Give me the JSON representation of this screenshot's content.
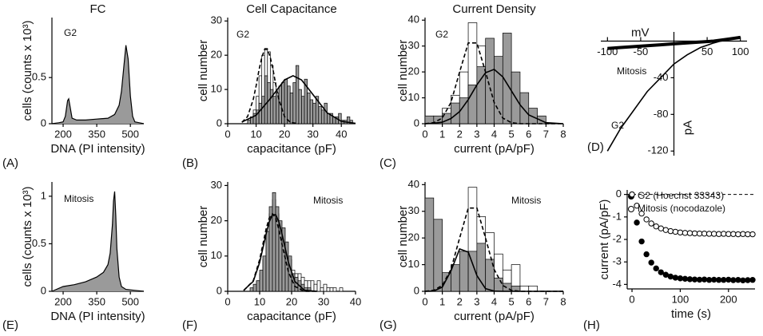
{
  "chart_data": [
    {
      "type": "area",
      "panel": "(A)",
      "title": "FC",
      "annotation": "G2",
      "xlabel": "DNA (PI intensity)",
      "ylabel": "cells (counts x 10³)",
      "x": [
        150,
        180,
        200,
        210,
        220,
        225,
        230,
        240,
        260,
        300,
        350,
        400,
        430,
        450,
        460,
        470,
        480,
        490,
        500,
        510,
        520,
        540,
        560
      ],
      "values": [
        0,
        0.01,
        0.02,
        0.08,
        0.25,
        0.27,
        0.2,
        0.06,
        0.04,
        0.04,
        0.05,
        0.06,
        0.1,
        0.2,
        0.35,
        0.6,
        0.85,
        0.7,
        0.3,
        0.08,
        0.02,
        0.01,
        0
      ],
      "color": "#9a9a9a",
      "xlim": [
        150,
        560
      ],
      "ylim": [
        0,
        1.15
      ],
      "xticks": [
        200,
        350,
        500
      ],
      "yticks": [
        0,
        0.5
      ]
    },
    {
      "type": "histogram",
      "panel": "(B)",
      "title": "Cell Capacitance",
      "annotation": "G2",
      "xlabel": "capacitance (pF)",
      "ylabel": "cell number",
      "bins": [
        6,
        7,
        8,
        9,
        10,
        11,
        12,
        13,
        14,
        15,
        16,
        17,
        18,
        19,
        20,
        21,
        22,
        23,
        24,
        25,
        26,
        27,
        28,
        29,
        30,
        31,
        32,
        33,
        34,
        35,
        36,
        37,
        38,
        39,
        40,
        41,
        42,
        43,
        44
      ],
      "series": [
        {
          "color": "#ffffff",
          "values": [
            0,
            1,
            2,
            4,
            8,
            14,
            20,
            22,
            21,
            17,
            12,
            8,
            6,
            4,
            3,
            2,
            2,
            1,
            1,
            1,
            1,
            0,
            1,
            0,
            0,
            0,
            0,
            0,
            0,
            0,
            0,
            0,
            0,
            0,
            0,
            0,
            0,
            0
          ]
        },
        {
          "color": "#9a9a9a",
          "values": [
            0,
            1,
            2,
            3,
            4,
            6,
            8,
            14,
            12,
            10,
            8,
            9,
            11,
            12,
            13,
            11,
            9,
            12,
            17,
            10,
            8,
            13,
            9,
            7,
            6,
            8,
            5,
            4,
            6,
            3,
            3,
            2,
            2,
            3,
            1,
            1,
            2,
            1
          ]
        }
      ],
      "fits": [
        {
          "dashed": true,
          "x": [
            5,
            7,
            9,
            10,
            11,
            12,
            13,
            14,
            15,
            16,
            17,
            18,
            20,
            22,
            25
          ],
          "values": [
            0.4,
            2.1,
            7.1,
            11.1,
            15.6,
            19.4,
            21.7,
            21.7,
            19.4,
            15.6,
            11.1,
            7.1,
            2.1,
            0.4,
            0
          ]
        },
        {
          "dashed": false,
          "x": [
            5,
            10,
            15,
            20,
            23,
            26,
            30,
            35,
            40,
            45
          ],
          "values": [
            0.5,
            2.5,
            7.3,
            12.8,
            14,
            12.8,
            8.5,
            3.2,
            0.7,
            0.1
          ]
        }
      ],
      "xlim": [
        0,
        45
      ],
      "ylim": [
        0,
        31
      ],
      "xticks": [
        0,
        10,
        20,
        30,
        40
      ],
      "yticks": [
        0,
        10,
        20,
        30
      ]
    },
    {
      "type": "histogram",
      "panel": "(C)",
      "title": "Current Density",
      "annotation": "G2",
      "xlabel": "current (pA/pF)",
      "ylabel": "cell number",
      "bins": [
        0,
        0.5,
        1,
        1.5,
        2,
        2.5,
        3,
        3.5,
        4,
        4.5,
        5,
        5.5,
        6,
        6.5,
        7
      ],
      "series": [
        {
          "color": "#ffffff",
          "values": [
            1,
            2,
            6,
            11,
            20,
            39,
            30,
            14,
            8,
            4,
            2,
            1,
            0,
            0
          ]
        },
        {
          "color": "#9a9a9a",
          "values": [
            3,
            3,
            4,
            8,
            10,
            15,
            22,
            33,
            26,
            35,
            20,
            12,
            6,
            3
          ]
        }
      ],
      "fits": [
        {
          "dashed": true,
          "x": [
            0,
            0.5,
            1,
            1.5,
            2,
            2.5,
            3,
            3.5,
            4,
            4.5,
            5,
            5.5,
            6,
            7,
            8
          ],
          "values": [
            0,
            0.4,
            2.2,
            8.2,
            20,
            31.2,
            31.2,
            20,
            8.2,
            2.2,
            0.4,
            0,
            0,
            0,
            0
          ]
        },
        {
          "dashed": false,
          "x": [
            0,
            0.5,
            1,
            1.5,
            2,
            2.5,
            3,
            3.5,
            4,
            4.5,
            5,
            5.5,
            6,
            7,
            8
          ],
          "values": [
            0,
            0.2,
            0.6,
            2,
            4.7,
            9.3,
            15,
            19.7,
            21,
            18.1,
            12.7,
            7.3,
            3.4,
            0.4,
            0
          ]
        }
      ],
      "xlim": [
        0,
        8
      ],
      "ylim": [
        0,
        41
      ],
      "xticks": [
        0,
        1,
        2,
        3,
        4,
        5,
        6,
        7,
        8
      ],
      "yticks": [
        0,
        10,
        20,
        30,
        40
      ]
    },
    {
      "type": "line",
      "panel": "(D)",
      "xlabel": "mV",
      "ylabel": "pA",
      "x": [
        -100,
        -80,
        -60,
        -40,
        -20,
        0,
        20,
        40,
        60,
        80,
        100
      ],
      "series": [
        {
          "name": "Mitosis",
          "color": "#000000",
          "values": [
            -8,
            -7,
            -6,
            -5,
            -4,
            -3,
            -2,
            -1,
            0,
            2,
            4
          ]
        },
        {
          "name": "G2",
          "color": "#000000",
          "values": [
            -120,
            -95,
            -75,
            -55,
            -40,
            -25,
            -15,
            -7,
            -2,
            2,
            5
          ]
        }
      ],
      "xlim": [
        -110,
        110
      ],
      "ylim": [
        -125,
        10
      ],
      "xticks": [
        -100,
        -50,
        50,
        100
      ],
      "yticks": [
        -40,
        -80,
        -120
      ]
    },
    {
      "type": "area",
      "panel": "(E)",
      "annotation": "Mitosis",
      "xlabel": "DNA (PI intensity)",
      "ylabel": "cells (counts x 10³)",
      "x": [
        150,
        200,
        250,
        300,
        350,
        380,
        400,
        410,
        420,
        425,
        430,
        435,
        440,
        450,
        460,
        480,
        520,
        560
      ],
      "values": [
        0,
        0.05,
        0.07,
        0.1,
        0.15,
        0.2,
        0.28,
        0.4,
        0.7,
        0.95,
        1.05,
        0.8,
        0.45,
        0.15,
        0.05,
        0.02,
        0.01,
        0
      ],
      "color": "#9a9a9a",
      "xlim": [
        150,
        560
      ],
      "ylim": [
        0,
        1.15
      ],
      "xticks": [
        200,
        350,
        500
      ],
      "yticks": [
        0,
        0.5,
        1
      ]
    },
    {
      "type": "histogram",
      "panel": "(F)",
      "annotation": "Mitosis",
      "xlabel": "capacitance (pF)",
      "ylabel": "cell number",
      "bins": [
        7,
        8,
        9,
        10,
        11,
        12,
        13,
        14,
        15,
        16,
        17,
        18,
        19,
        20,
        21,
        22,
        23,
        24,
        25,
        26,
        27,
        28,
        29,
        30,
        31,
        32,
        33,
        34,
        35,
        36
      ],
      "series": [
        {
          "color": "#ffffff",
          "values": [
            0,
            1,
            3,
            5,
            9,
            16,
            22,
            26,
            22,
            17,
            12,
            8,
            9,
            6,
            5,
            5,
            4,
            3,
            3,
            3,
            2,
            3,
            1,
            2,
            1,
            1,
            1,
            0,
            1
          ]
        },
        {
          "color": "#9a9a9a",
          "values": [
            1,
            2,
            3,
            6,
            10,
            17,
            24,
            28,
            24,
            20,
            18,
            14,
            10,
            5,
            4,
            3,
            2,
            1,
            1,
            0,
            0,
            0,
            0,
            0,
            0,
            0,
            0,
            0,
            0
          ]
        }
      ],
      "fits": [
        {
          "dashed": false,
          "x": [
            5,
            8,
            10,
            12,
            13,
            14,
            15,
            16,
            17,
            19,
            21,
            24,
            28
          ],
          "values": [
            0.3,
            2.8,
            8.2,
            16.2,
            19.7,
            21.7,
            21.7,
            19.7,
            16.2,
            8.2,
            2.8,
            0.3,
            0
          ]
        },
        {
          "dashed": true,
          "x": [
            5,
            8,
            10,
            12,
            13,
            14,
            15,
            16,
            17,
            19,
            21,
            24,
            28
          ],
          "values": [
            0.2,
            3,
            9,
            17.6,
            20.8,
            22,
            20.8,
            17.6,
            13.3,
            5.5,
            1.4,
            0,
            0
          ]
        }
      ],
      "xlim": [
        0,
        40
      ],
      "ylim": [
        0,
        31
      ],
      "xticks": [
        0,
        10,
        20,
        30,
        40
      ],
      "yticks": [
        0,
        10,
        20,
        30
      ]
    },
    {
      "type": "histogram",
      "panel": "(G)",
      "annotation": "Mitosis",
      "xlabel": "current (pA/pF)",
      "ylabel": "cell number",
      "bins": [
        0,
        0.5,
        1,
        1.5,
        2,
        2.5,
        3,
        3.5,
        4,
        4.5,
        5,
        5.5,
        6,
        6.5,
        7
      ],
      "series": [
        {
          "color": "#ffffff",
          "values": [
            0,
            0,
            2,
            5,
            10,
            39,
            28,
            22,
            14,
            8,
            10,
            2,
            2,
            0
          ]
        },
        {
          "color": "#9a9a9a",
          "values": [
            35,
            27,
            7,
            10,
            15,
            15,
            18,
            12,
            5,
            3,
            2,
            0,
            0,
            0
          ]
        }
      ],
      "fits": [
        {
          "dashed": true,
          "x": [
            0,
            0.5,
            1,
            1.5,
            2,
            2.5,
            3,
            3.5,
            4,
            4.5,
            5,
            5.5,
            6,
            7,
            8
          ],
          "values": [
            0,
            0.4,
            2.2,
            8.2,
            20,
            31.2,
            31.2,
            20,
            8.2,
            2.2,
            0.4,
            0,
            0,
            0,
            0
          ]
        },
        {
          "dashed": false,
          "x": [
            0,
            0.5,
            1,
            1.5,
            2,
            2.5,
            3,
            3.5,
            4,
            4.5,
            5,
            5.5,
            6,
            7,
            8
          ],
          "values": [
            0,
            0.1,
            1.6,
            7.6,
            15.9,
            14.7,
            5.9,
            1,
            0.1,
            0,
            0,
            0,
            0,
            0,
            0
          ]
        }
      ],
      "xlim": [
        0,
        8
      ],
      "ylim": [
        0,
        41
      ],
      "xticks": [
        0,
        1,
        2,
        3,
        4,
        5,
        6,
        7,
        8
      ],
      "yticks": [
        0,
        10,
        20,
        30,
        40
      ]
    },
    {
      "type": "scatter",
      "panel": "(H)",
      "xlabel": "time (s)",
      "ylabel": "current (pA/pF)",
      "legend": "upper right",
      "hline": 0,
      "x": [
        0,
        10,
        20,
        30,
        40,
        50,
        60,
        70,
        80,
        90,
        100,
        110,
        120,
        130,
        140,
        150,
        160,
        170,
        180,
        190,
        200,
        210,
        220,
        230,
        240,
        250
      ],
      "series": [
        {
          "name": "G2 (Hoechst 33343)",
          "color": "#000000",
          "filled": true,
          "values": [
            0,
            -1.25,
            -2.09,
            -2.66,
            -3.03,
            -3.29,
            -3.46,
            -3.57,
            -3.65,
            -3.7,
            -3.73,
            -3.75,
            -3.77,
            -3.78,
            -3.79,
            -3.78,
            -3.8,
            -3.79,
            -3.8,
            -3.8,
            -3.79,
            -3.81,
            -3.8,
            -3.82,
            -3.81,
            -3.8
          ]
        },
        {
          "name": "Mitosis (nocodazole)",
          "color": "#000000",
          "filled": false,
          "values": [
            0,
            -0.5,
            -0.85,
            -1.11,
            -1.29,
            -1.42,
            -1.51,
            -1.58,
            -1.63,
            -1.66,
            -1.69,
            -1.71,
            -1.72,
            -1.73,
            -1.74,
            -1.74,
            -1.75,
            -1.75,
            -1.76,
            -1.75,
            -1.76,
            -1.76,
            -1.77,
            -1.76,
            -1.77,
            -1.77
          ]
        }
      ],
      "xlim": [
        -10,
        255
      ],
      "ylim": [
        -4.2,
        0.2
      ],
      "xticks": [
        0,
        100,
        200
      ],
      "yticks": [
        0,
        -1,
        -2,
        -3,
        -4
      ]
    }
  ]
}
